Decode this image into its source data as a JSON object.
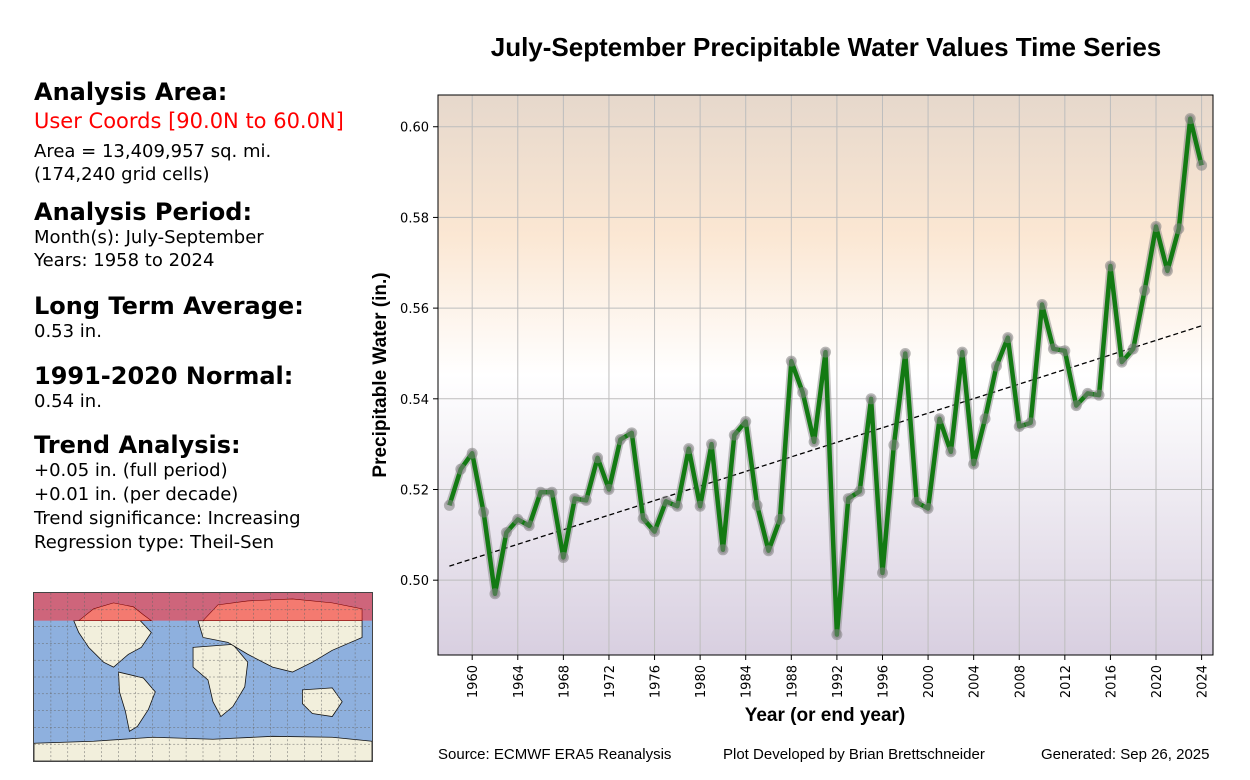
{
  "left_panel": {
    "area_heading": "Analysis Area:",
    "area_name": "User Coords [90.0N to 60.0N]",
    "area_size": "Area = 13,409,957 sq. mi.",
    "grid_cells": "(174,240 grid cells)",
    "period_heading": "Analysis Period:",
    "months": "Month(s): July-September",
    "years": "Years: 1958 to 2024",
    "lta_heading": "Long Term Average:",
    "lta_value": "0.53 in.",
    "normal_heading": "1991-2020 Normal:",
    "normal_value": "0.54 in.",
    "trend_heading": "Trend Analysis:",
    "trend_full": "+0.05 in. (full period)",
    "trend_decade": "+0.01 in. (per decade)",
    "trend_significance": "Trend significance: Increasing",
    "regression_type": "Regression type: Theil-Sen"
  },
  "map": {
    "ocean_color": "#8eb0de",
    "land_color": "#f2efdc",
    "highlight_color": "#d9505f",
    "highlight_lat_range": [
      60,
      90
    ]
  },
  "footer": {
    "source": "Source: ECMWF ERA5 Reanalysis",
    "developer": "Plot Developed by Brian Brettschneider",
    "generated": "Generated: Sep 26, 2025"
  },
  "chart_data": {
    "type": "line",
    "title": "July-September Precipitable Water Values Time Series",
    "xlabel": "Year (or end year)",
    "ylabel": "Precipitable Water (in.)",
    "xlim": [
      1957,
      2025
    ],
    "ylim": [
      0.4835,
      0.607
    ],
    "xticks": [
      1960,
      1964,
      1968,
      1972,
      1976,
      1980,
      1984,
      1988,
      1992,
      1996,
      2000,
      2004,
      2008,
      2012,
      2016,
      2020,
      2024
    ],
    "yticks": [
      0.5,
      0.52,
      0.54,
      0.56,
      0.58,
      0.6
    ],
    "ytick_labels": [
      "0.50",
      "0.52",
      "0.54",
      "0.56",
      "0.58",
      "0.60"
    ],
    "grid": true,
    "line_color": "#137a13",
    "marker_color": "#808080",
    "background_gradient": [
      "#e6d8cc",
      "#fbe7d3",
      "#ffffff",
      "#d8cfe0"
    ],
    "x": [
      1958,
      1959,
      1960,
      1961,
      1962,
      1963,
      1964,
      1965,
      1966,
      1967,
      1968,
      1969,
      1970,
      1971,
      1972,
      1973,
      1974,
      1975,
      1976,
      1977,
      1978,
      1979,
      1980,
      1981,
      1982,
      1983,
      1984,
      1985,
      1986,
      1987,
      1988,
      1989,
      1990,
      1991,
      1992,
      1993,
      1994,
      1995,
      1996,
      1997,
      1998,
      1999,
      2000,
      2001,
      2002,
      2003,
      2004,
      2005,
      2006,
      2007,
      2008,
      2009,
      2010,
      2011,
      2012,
      2013,
      2014,
      2015,
      2016,
      2017,
      2018,
      2019,
      2020,
      2021,
      2022,
      2023,
      2024
    ],
    "series": [
      {
        "name": "Precipitable Water",
        "values": [
          0.5165,
          0.5245,
          0.528,
          0.515,
          0.497,
          0.5105,
          0.5134,
          0.512,
          0.5194,
          0.5194,
          0.505,
          0.518,
          0.5176,
          0.527,
          0.52,
          0.531,
          0.5325,
          0.5136,
          0.5107,
          0.5174,
          0.5163,
          0.529,
          0.5163,
          0.53,
          0.5067,
          0.532,
          0.535,
          0.5165,
          0.5065,
          0.5134,
          0.5483,
          0.5414,
          0.5305,
          0.5503,
          0.488,
          0.518,
          0.5196,
          0.54,
          0.5016,
          0.5298,
          0.55,
          0.5172,
          0.5158,
          0.5356,
          0.5283,
          0.5503,
          0.5256,
          0.5356,
          0.5472,
          0.5535,
          0.5339,
          0.5347,
          0.5608,
          0.551,
          0.5506,
          0.5385,
          0.5412,
          0.5408,
          0.5693,
          0.5481,
          0.551,
          0.5639,
          0.578,
          0.5682,
          0.5775,
          0.6018,
          0.5915
        ]
      }
    ],
    "trend_line": {
      "name": "Theil-Sen trend",
      "x": [
        1958,
        2024
      ],
      "y": [
        0.5031,
        0.5561
      ],
      "style": "dashed",
      "color": "#000000"
    }
  }
}
